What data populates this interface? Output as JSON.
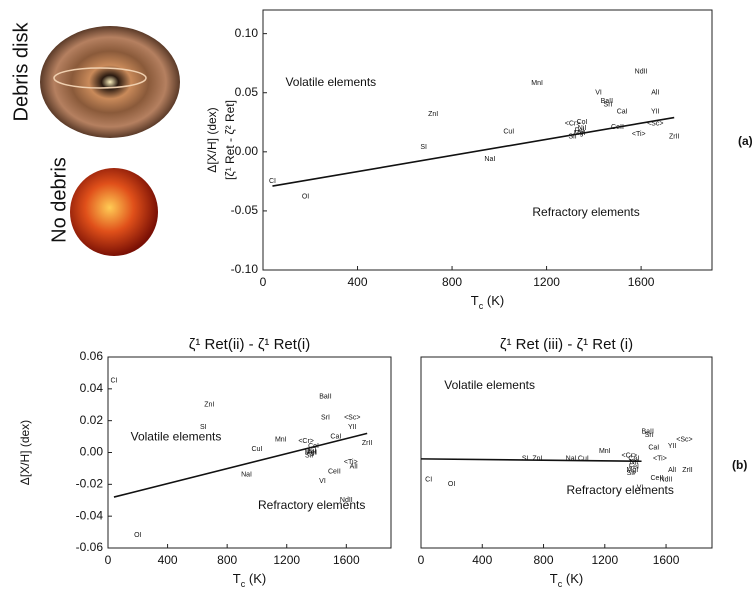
{
  "side_labels": {
    "debris": "Debris disk",
    "no_debris": "No debris"
  },
  "panel_labels": [
    "(a)",
    "(b)"
  ],
  "chart_data": [
    {
      "type": "scatter",
      "ylabel": [
        "Δ[X/H] (dex)",
        "[ζ¹ Ret - ζ² Ret]"
      ],
      "xlabel": [
        "T",
        "c",
        " (K)"
      ],
      "annotations": [
        "Volatile elements",
        "Refractory elements"
      ],
      "xlim": [
        0,
        1900
      ],
      "xticks": [
        0,
        400,
        800,
        1200,
        1600
      ],
      "ylim": [
        -0.1,
        0.12
      ],
      "yticks": [
        {
          "value": -0.1,
          "label": "-0.10"
        },
        -0.05,
        {
          "value": 0.0,
          "label": "0.00"
        },
        0.05,
        {
          "value": 0.1,
          "label": "0.10"
        }
      ],
      "labels": [
        "CI",
        "OI",
        "SI",
        "ZnI",
        "NaI",
        "CuI",
        "MnI",
        "VI",
        "BaII",
        "SrI",
        "CaI",
        "NdII",
        "AlI",
        "YII",
        "<Sc>",
        "<Ti>",
        "ZrII",
        "CeII",
        "<Cr>",
        "CoI",
        "NiI",
        "FeI",
        "MgI",
        "SiI"
      ],
      "x": [
        40,
        180,
        680,
        720,
        960,
        1040,
        1160,
        1420,
        1455,
        1460,
        1520,
        1600,
        1660,
        1660,
        1660,
        1590,
        1740,
        1500,
        1310,
        1350,
        1350,
        1340,
        1340,
        1310
      ],
      "values": [
        -0.025,
        -0.038,
        0.004,
        0.032,
        -0.006,
        0.017,
        0.058,
        0.05,
        0.043,
        0.04,
        0.034,
        0.068,
        0.05,
        0.034,
        0.024,
        0.015,
        0.013,
        0.021,
        0.024,
        0.025,
        0.02,
        0.018,
        0.016,
        0.013
      ],
      "fit": {
        "x": [
          40,
          1740
        ],
        "values": [
          -0.029,
          0.029
        ]
      }
    },
    {
      "type": "scatter",
      "title": "ζ¹ Ret(ii) - ζ¹ Ret(i)",
      "ylabel": [
        "Δ[X/H] (dex)"
      ],
      "xlabel": [
        "T",
        "c",
        " (K)"
      ],
      "annotations": [
        "Volatile elements",
        "Refractory elements"
      ],
      "xlim": [
        0,
        1900
      ],
      "xticks": [
        0,
        400,
        800,
        1200,
        1600
      ],
      "ylim": [
        -0.06,
        0.06
      ],
      "yticks": [
        -0.06,
        -0.04,
        -0.02,
        {
          "value": 0.0,
          "label": "0.00"
        },
        0.02,
        0.04,
        0.06
      ],
      "labels": [
        "CI",
        "ZnI",
        "SI",
        "CuI",
        "MnI",
        "NaI",
        "OI",
        "BaII",
        "SrI",
        "<Sc>",
        "CaI",
        "YII",
        "ZrII",
        "<Cr>",
        "CoI",
        "NiI",
        "FeI",
        "MgI",
        "SiI",
        "<Ti>",
        "AlI",
        "CeII",
        "VI",
        "NdII"
      ],
      "x": [
        40,
        680,
        640,
        1000,
        1160,
        930,
        200,
        1460,
        1460,
        1640,
        1530,
        1640,
        1740,
        1330,
        1380,
        1370,
        1370,
        1360,
        1350,
        1630,
        1650,
        1520,
        1440,
        1600
      ],
      "values": [
        0.045,
        0.03,
        0.016,
        0.002,
        0.008,
        -0.014,
        -0.052,
        0.035,
        0.022,
        0.022,
        0.01,
        0.016,
        0.006,
        0.007,
        0.004,
        0.001,
        0.0,
        0.0,
        -0.002,
        -0.006,
        -0.009,
        -0.012,
        -0.018,
        -0.03
      ],
      "fit": {
        "x": [
          40,
          1740
        ],
        "values": [
          -0.028,
          0.012
        ]
      }
    },
    {
      "type": "scatter",
      "title": "ζ¹ Ret (iii) - ζ¹ Ret (i)",
      "xlabel": [
        "T",
        "c",
        " (K)"
      ],
      "annotations": [
        "Volatile elements",
        "Refractory elements"
      ],
      "xlim": [
        0,
        1900
      ],
      "xticks": [
        0,
        400,
        800,
        1200,
        1600
      ],
      "ylim": [
        -0.06,
        0.06
      ],
      "labels": [
        "CI",
        "OI",
        "SI",
        "ZnI",
        "NaI",
        "CuI",
        "MnI",
        "BaII",
        "SrI",
        "<Sc>",
        "YII",
        "CaI",
        "<Ti>",
        "AlI",
        "ZrII",
        "CeII",
        "NdII",
        "VI",
        "<Cr>",
        "CoI",
        "NiI",
        "FeI",
        "MgI",
        "SiI"
      ],
      "x": [
        50,
        200,
        680,
        760,
        980,
        1060,
        1200,
        1480,
        1490,
        1720,
        1640,
        1520,
        1560,
        1640,
        1740,
        1540,
        1600,
        1430,
        1360,
        1390,
        1390,
        1390,
        1380,
        1370
      ],
      "values": [
        -0.017,
        -0.02,
        -0.004,
        -0.004,
        -0.004,
        -0.004,
        0.001,
        0.013,
        0.011,
        0.008,
        0.004,
        0.003,
        -0.004,
        -0.011,
        -0.011,
        -0.016,
        -0.017,
        -0.022,
        -0.002,
        -0.004,
        -0.006,
        -0.009,
        -0.011,
        -0.013
      ],
      "fit": {
        "x": [
          0,
          1440
        ],
        "values": [
          -0.004,
          -0.0055
        ]
      }
    }
  ]
}
